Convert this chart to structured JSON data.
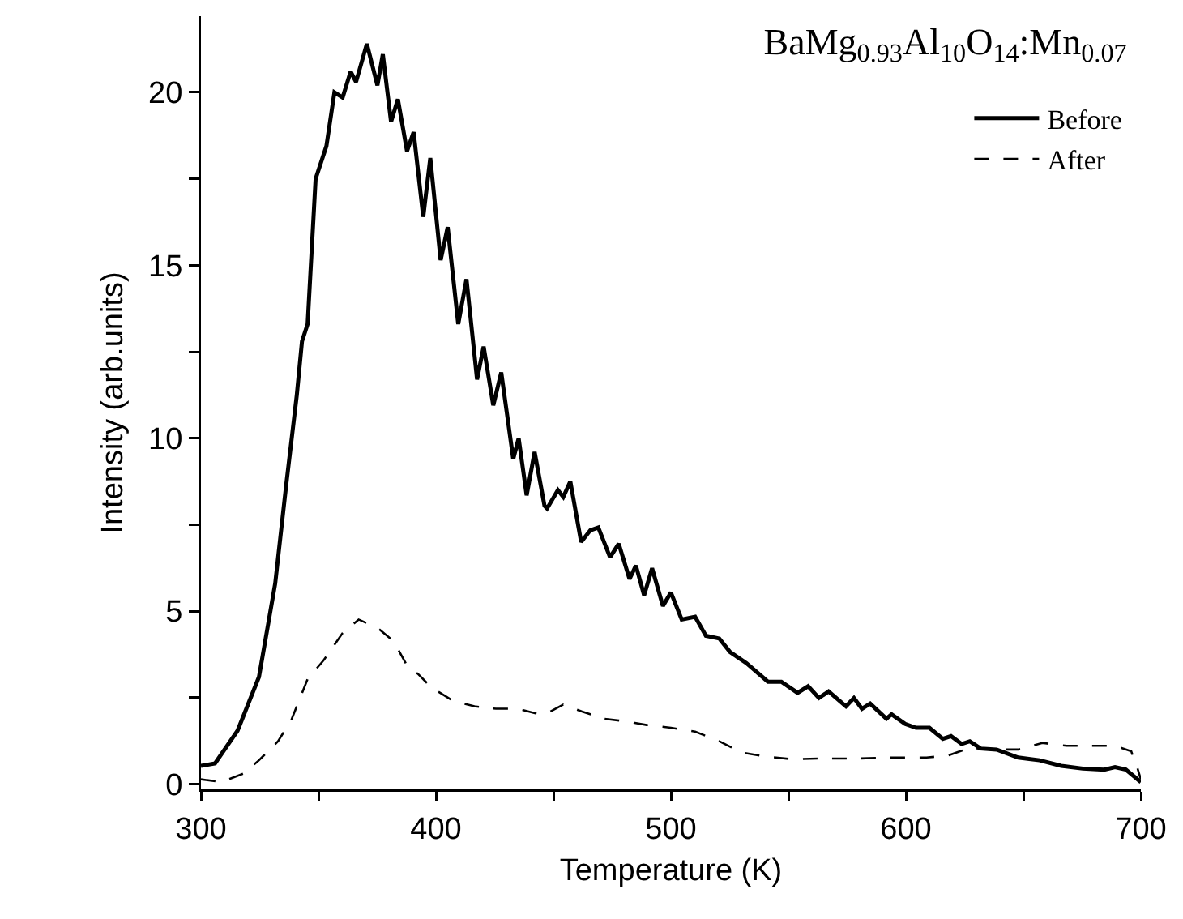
{
  "chart_data": {
    "type": "line",
    "title": "BaMg$_{0.93}$Al$_{10}$O$_{14}$:Mn$_{0.07}$",
    "xlabel": "Temperature (K)",
    "ylabel": "Intensity (arb.units)",
    "xlim": [
      300,
      700
    ],
    "ylim": [
      -0.15,
      22.2
    ],
    "xticks": [
      300,
      {
        "value": 350,
        "label": null
      },
      400,
      {
        "value": 450,
        "label": null
      },
      500,
      {
        "value": 550,
        "label": null
      },
      600,
      {
        "value": 650,
        "label": null
      },
      700
    ],
    "yticks": [
      0,
      {
        "value": 2.5,
        "label": null
      },
      5,
      {
        "value": 7.5,
        "label": null
      },
      10,
      {
        "value": 12.5,
        "label": null
      },
      15,
      {
        "value": 17.5,
        "label": null
      },
      20
    ],
    "grid": false,
    "legend": "top right",
    "marker": "none",
    "series": [
      {
        "name": "Before",
        "color": "#000000",
        "line_style": "solid",
        "x": [
          300,
          306,
          315.6,
          324.7,
          331.6,
          336.2,
          340.8,
          343,
          345.4,
          348.8,
          353.4,
          356.8,
          360.3,
          363.7,
          366,
          370.6,
          375.1,
          377.4,
          380.9,
          383.8,
          387.7,
          390.5,
          394.6,
          397.6,
          402,
          405,
          409.5,
          413,
          417.5,
          420.3,
          424.4,
          427.8,
          432.9,
          435.2,
          438.6,
          442,
          446.2,
          447.3,
          451.9,
          454.2,
          457.2,
          461.8,
          465.7,
          469.1,
          474.1,
          477.8,
          482.4,
          485.1,
          488.6,
          492,
          496.6,
          500,
          504.6,
          510.3,
          514.9,
          520.6,
          525.2,
          532.1,
          541.3,
          547,
          553.9,
          558.4,
          563,
          567.1,
          574.5,
          577.9,
          581.3,
          584.8,
          591.7,
          593.9,
          599.7,
          604.3,
          610,
          615.7,
          619.2,
          623.7,
          627.2,
          631.8,
          638.6,
          647.8,
          656.9,
          666.1,
          675.3,
          684.4,
          689,
          693.6,
          700
        ],
        "values": [
          0.53,
          0.6,
          1.55,
          3.1,
          5.8,
          8.6,
          11.25,
          12.8,
          13.3,
          17.5,
          18.45,
          20.0,
          19.85,
          20.6,
          20.3,
          21.4,
          20.2,
          21.1,
          19.15,
          19.8,
          18.3,
          18.85,
          16.4,
          18.1,
          15.15,
          16.1,
          13.3,
          14.6,
          11.7,
          12.65,
          10.95,
          11.9,
          9.4,
          10.0,
          8.35,
          9.6,
          8.05,
          7.97,
          8.5,
          8.3,
          8.75,
          7.0,
          7.34,
          7.42,
          6.56,
          6.95,
          5.93,
          6.32,
          5.46,
          6.24,
          5.15,
          5.54,
          4.76,
          4.84,
          4.29,
          4.21,
          3.82,
          3.5,
          2.96,
          2.96,
          2.64,
          2.83,
          2.49,
          2.68,
          2.25,
          2.49,
          2.18,
          2.33,
          1.89,
          2.02,
          1.74,
          1.63,
          1.63,
          1.31,
          1.39,
          1.16,
          1.24,
          1.03,
          1.0,
          0.77,
          0.69,
          0.53,
          0.45,
          0.42,
          0.49,
          0.42,
          0.06
        ]
      },
      {
        "name": "After",
        "color": "#000000",
        "line_style": "dashed",
        "x": [
          300,
          308.7,
          317.9,
          324.7,
          332.8,
          338.5,
          345.4,
          352.2,
          360.3,
          367.1,
          375.1,
          382,
          387.7,
          392.3,
          398,
          407.2,
          416.4,
          425.5,
          434.7,
          443.9,
          447.3,
          454.2,
          462.2,
          471.4,
          480.5,
          489.7,
          500,
          510.3,
          520.6,
          529.8,
          540.1,
          551.6,
          563,
          579.1,
          592.8,
          608.8,
          618,
          627.2,
          636.3,
          647.8,
          658.1,
          668.4,
          679.9,
          689,
          695.9,
          698.6,
          700
        ],
        "values": [
          0.14,
          0.06,
          0.3,
          0.69,
          1.24,
          1.86,
          3.04,
          3.58,
          4.37,
          4.76,
          4.52,
          4.13,
          3.43,
          3.19,
          2.8,
          2.41,
          2.25,
          2.18,
          2.18,
          2.02,
          2.05,
          2.3,
          2.1,
          1.89,
          1.82,
          1.71,
          1.63,
          1.52,
          1.24,
          0.92,
          0.8,
          0.72,
          0.74,
          0.74,
          0.77,
          0.77,
          0.83,
          1.05,
          1.0,
          1.0,
          1.19,
          1.11,
          1.11,
          1.11,
          0.95,
          0.45,
          0.14
        ]
      }
    ]
  }
}
